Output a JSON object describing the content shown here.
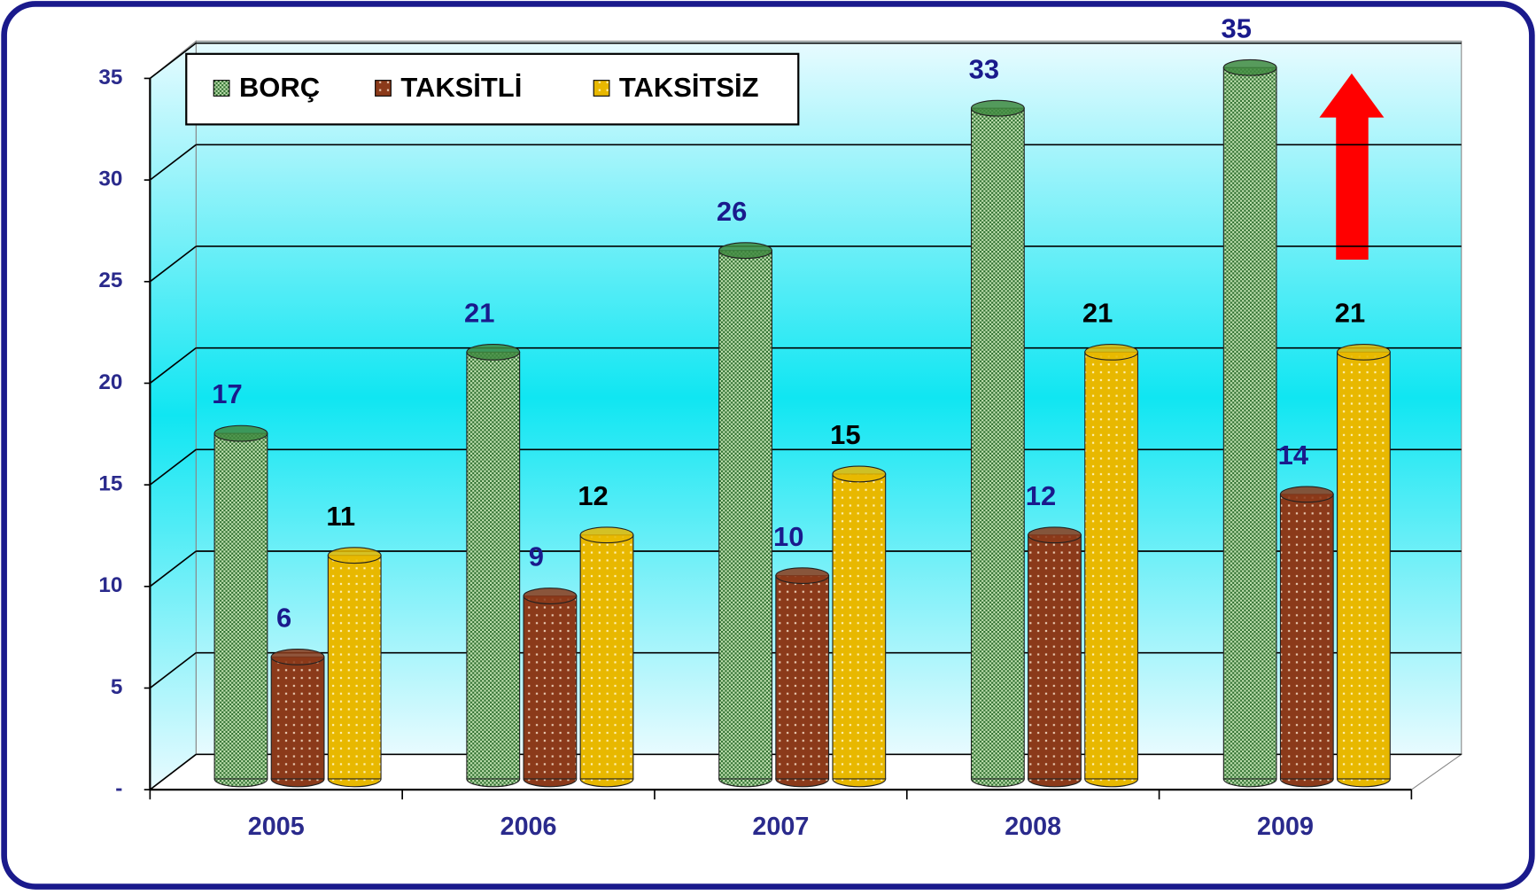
{
  "chart_data": {
    "type": "bar",
    "categories": [
      "2005",
      "2006",
      "2007",
      "2008",
      "2009"
    ],
    "series": [
      {
        "name": "BORÇ",
        "color": "#3f8a3f",
        "values": [
          17,
          21,
          26,
          33,
          35
        ]
      },
      {
        "name": "TAKSİTLİ",
        "color": "#8b3a1a",
        "values": [
          6,
          9,
          10,
          12,
          14
        ]
      },
      {
        "name": "TAKSİTSİZ",
        "color": "#e8b800",
        "values": [
          11,
          12,
          15,
          21,
          21
        ]
      }
    ],
    "ylim": [
      0,
      35
    ],
    "yticks": [
      {
        "value": 0,
        "label": "-"
      },
      5,
      10,
      15,
      20,
      25,
      30,
      35
    ],
    "grid": true
  }
}
